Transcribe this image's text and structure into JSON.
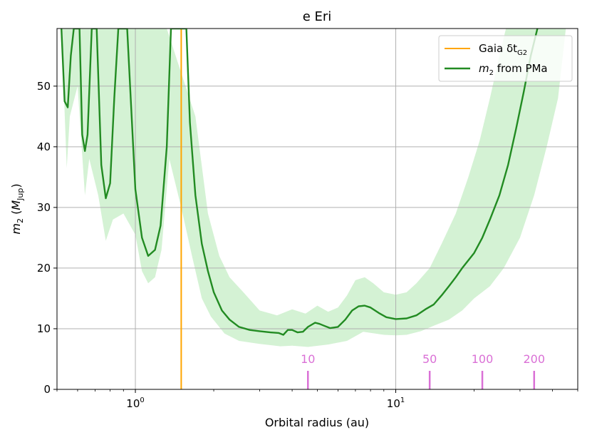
{
  "chart_data": {
    "type": "line",
    "title": "e Eri",
    "xlabel": "Orbital radius (au)",
    "ylabel_main": "m",
    "ylabel_sub": "2",
    "ylabel_unit_main": "M",
    "ylabel_unit_sub": "Jup",
    "x_scale": "log",
    "xlim": [
      0.5,
      50
    ],
    "ylim": [
      0,
      59.5
    ],
    "grid": true,
    "legend_position": "top-right",
    "y_ticks": [
      0,
      10,
      20,
      30,
      40,
      50
    ],
    "x_ticks": [
      {
        "value": 1,
        "base": "10",
        "exp": "0"
      },
      {
        "value": 10,
        "base": "10",
        "exp": "1"
      }
    ],
    "colors": {
      "gaia": "#ffa500",
      "mass": "#228b22",
      "band": "#d4f2d4",
      "period": "#da70d6",
      "grid": "#b0b0b0"
    },
    "gaia_line": {
      "name_main": "Gaia δt",
      "name_sub": "G2",
      "x": 1.5
    },
    "mass_curve": {
      "name_main": "m",
      "name_sub": "2",
      "name_suffix": " from PMa",
      "points": [
        [
          0.52,
          59.5
        ],
        [
          0.535,
          47.5
        ],
        [
          0.55,
          46.5
        ],
        [
          0.565,
          55
        ],
        [
          0.58,
          59.5
        ],
        [
          0.61,
          59.5
        ],
        [
          0.625,
          42
        ],
        [
          0.64,
          39.3
        ],
        [
          0.655,
          42
        ],
        [
          0.68,
          59.5
        ],
        [
          0.71,
          59.5
        ],
        [
          0.74,
          37
        ],
        [
          0.77,
          31.5
        ],
        [
          0.8,
          34
        ],
        [
          0.83,
          48
        ],
        [
          0.86,
          59.5
        ],
        [
          0.93,
          59.5
        ],
        [
          1.0,
          33
        ],
        [
          1.06,
          25
        ],
        [
          1.12,
          22
        ],
        [
          1.19,
          23
        ],
        [
          1.25,
          27
        ],
        [
          1.32,
          40
        ],
        [
          1.37,
          59.5
        ],
        [
          1.57,
          59.5
        ],
        [
          1.62,
          44
        ],
        [
          1.7,
          32
        ],
        [
          1.8,
          24
        ],
        [
          1.9,
          19.5
        ],
        [
          2.0,
          16
        ],
        [
          2.15,
          13
        ],
        [
          2.3,
          11.5
        ],
        [
          2.5,
          10.3
        ],
        [
          2.75,
          9.8
        ],
        [
          3.0,
          9.6
        ],
        [
          3.3,
          9.4
        ],
        [
          3.55,
          9.3
        ],
        [
          3.7,
          9.0
        ],
        [
          3.85,
          9.8
        ],
        [
          4.0,
          9.8
        ],
        [
          4.2,
          9.4
        ],
        [
          4.4,
          9.5
        ],
        [
          4.6,
          10.3
        ],
        [
          4.9,
          11.0
        ],
        [
          5.1,
          10.8
        ],
        [
          5.3,
          10.5
        ],
        [
          5.6,
          10.1
        ],
        [
          6.0,
          10.3
        ],
        [
          6.4,
          11.5
        ],
        [
          6.8,
          13.0
        ],
        [
          7.2,
          13.7
        ],
        [
          7.6,
          13.8
        ],
        [
          8.0,
          13.5
        ],
        [
          8.6,
          12.6
        ],
        [
          9.2,
          11.9
        ],
        [
          10.0,
          11.6
        ],
        [
          11.0,
          11.7
        ],
        [
          12.0,
          12.2
        ],
        [
          13.0,
          13.2
        ],
        [
          14.0,
          14.0
        ],
        [
          15.0,
          15.5
        ],
        [
          16.0,
          17.0
        ],
        [
          17.0,
          18.5
        ],
        [
          18.0,
          20.0
        ],
        [
          20.0,
          22.5
        ],
        [
          21.5,
          25.0
        ],
        [
          23.0,
          28.0
        ],
        [
          25.0,
          32.0
        ],
        [
          27.0,
          37.0
        ],
        [
          29.0,
          43.0
        ],
        [
          31.0,
          49.0
        ],
        [
          33.0,
          55.0
        ],
        [
          35.0,
          59.5
        ]
      ]
    },
    "band": {
      "upper": [
        [
          0.52,
          59.5
        ],
        [
          1.2,
          59.5
        ],
        [
          1.32,
          59.5
        ],
        [
          1.7,
          45
        ],
        [
          1.9,
          29
        ],
        [
          2.1,
          22
        ],
        [
          2.3,
          18.5
        ],
        [
          2.6,
          16
        ],
        [
          3.0,
          13
        ],
        [
          3.5,
          12.2
        ],
        [
          4.0,
          13.2
        ],
        [
          4.5,
          12.5
        ],
        [
          5.0,
          13.8
        ],
        [
          5.5,
          12.8
        ],
        [
          6.0,
          13.5
        ],
        [
          6.5,
          15.5
        ],
        [
          7.0,
          18.0
        ],
        [
          7.6,
          18.5
        ],
        [
          8.2,
          17.5
        ],
        [
          9.0,
          16.0
        ],
        [
          10.0,
          15.6
        ],
        [
          11.0,
          16.0
        ],
        [
          12.0,
          17.5
        ],
        [
          13.5,
          20.0
        ],
        [
          15.0,
          24.0
        ],
        [
          17.0,
          29.0
        ],
        [
          19.0,
          35.0
        ],
        [
          21.0,
          41.0
        ],
        [
          23.0,
          48.0
        ],
        [
          25.0,
          55.0
        ],
        [
          26.5,
          59.5
        ],
        [
          45,
          59.5
        ]
      ],
      "lower": [
        [
          0.52,
          59.5
        ],
        [
          0.545,
          36.5
        ],
        [
          0.56,
          45
        ],
        [
          0.6,
          50
        ],
        [
          0.64,
          32
        ],
        [
          0.665,
          38
        ],
        [
          0.72,
          32
        ],
        [
          0.77,
          24.5
        ],
        [
          0.82,
          28
        ],
        [
          0.9,
          29
        ],
        [
          1.0,
          25.5
        ],
        [
          1.06,
          19.5
        ],
        [
          1.12,
          17.5
        ],
        [
          1.19,
          18.5
        ],
        [
          1.26,
          23
        ],
        [
          1.35,
          38
        ],
        [
          1.5,
          30
        ],
        [
          1.65,
          22
        ],
        [
          1.8,
          15
        ],
        [
          1.95,
          12
        ],
        [
          2.2,
          9.2
        ],
        [
          2.5,
          8.0
        ],
        [
          3.0,
          7.5
        ],
        [
          3.6,
          7.1
        ],
        [
          4.0,
          7.2
        ],
        [
          4.6,
          7.0
        ],
        [
          5.5,
          7.4
        ],
        [
          6.5,
          8.0
        ],
        [
          7.5,
          9.5
        ],
        [
          9.0,
          9.0
        ],
        [
          10.0,
          8.9
        ],
        [
          11.0,
          9.0
        ],
        [
          12.5,
          9.6
        ],
        [
          14.0,
          10.5
        ],
        [
          16.0,
          11.5
        ],
        [
          18.0,
          13.0
        ],
        [
          20.0,
          15.0
        ],
        [
          23.0,
          17.0
        ],
        [
          26.0,
          20.0
        ],
        [
          30.0,
          25.0
        ],
        [
          34.0,
          32.0
        ],
        [
          38.0,
          40.0
        ],
        [
          42.0,
          48.0
        ],
        [
          45.0,
          59.5
        ]
      ]
    },
    "period_markers": [
      {
        "label": "10",
        "x": 4.6
      },
      {
        "label": "50",
        "x": 13.5
      },
      {
        "label": "100",
        "x": 21.5
      },
      {
        "label": "200",
        "x": 34.0
      }
    ]
  }
}
